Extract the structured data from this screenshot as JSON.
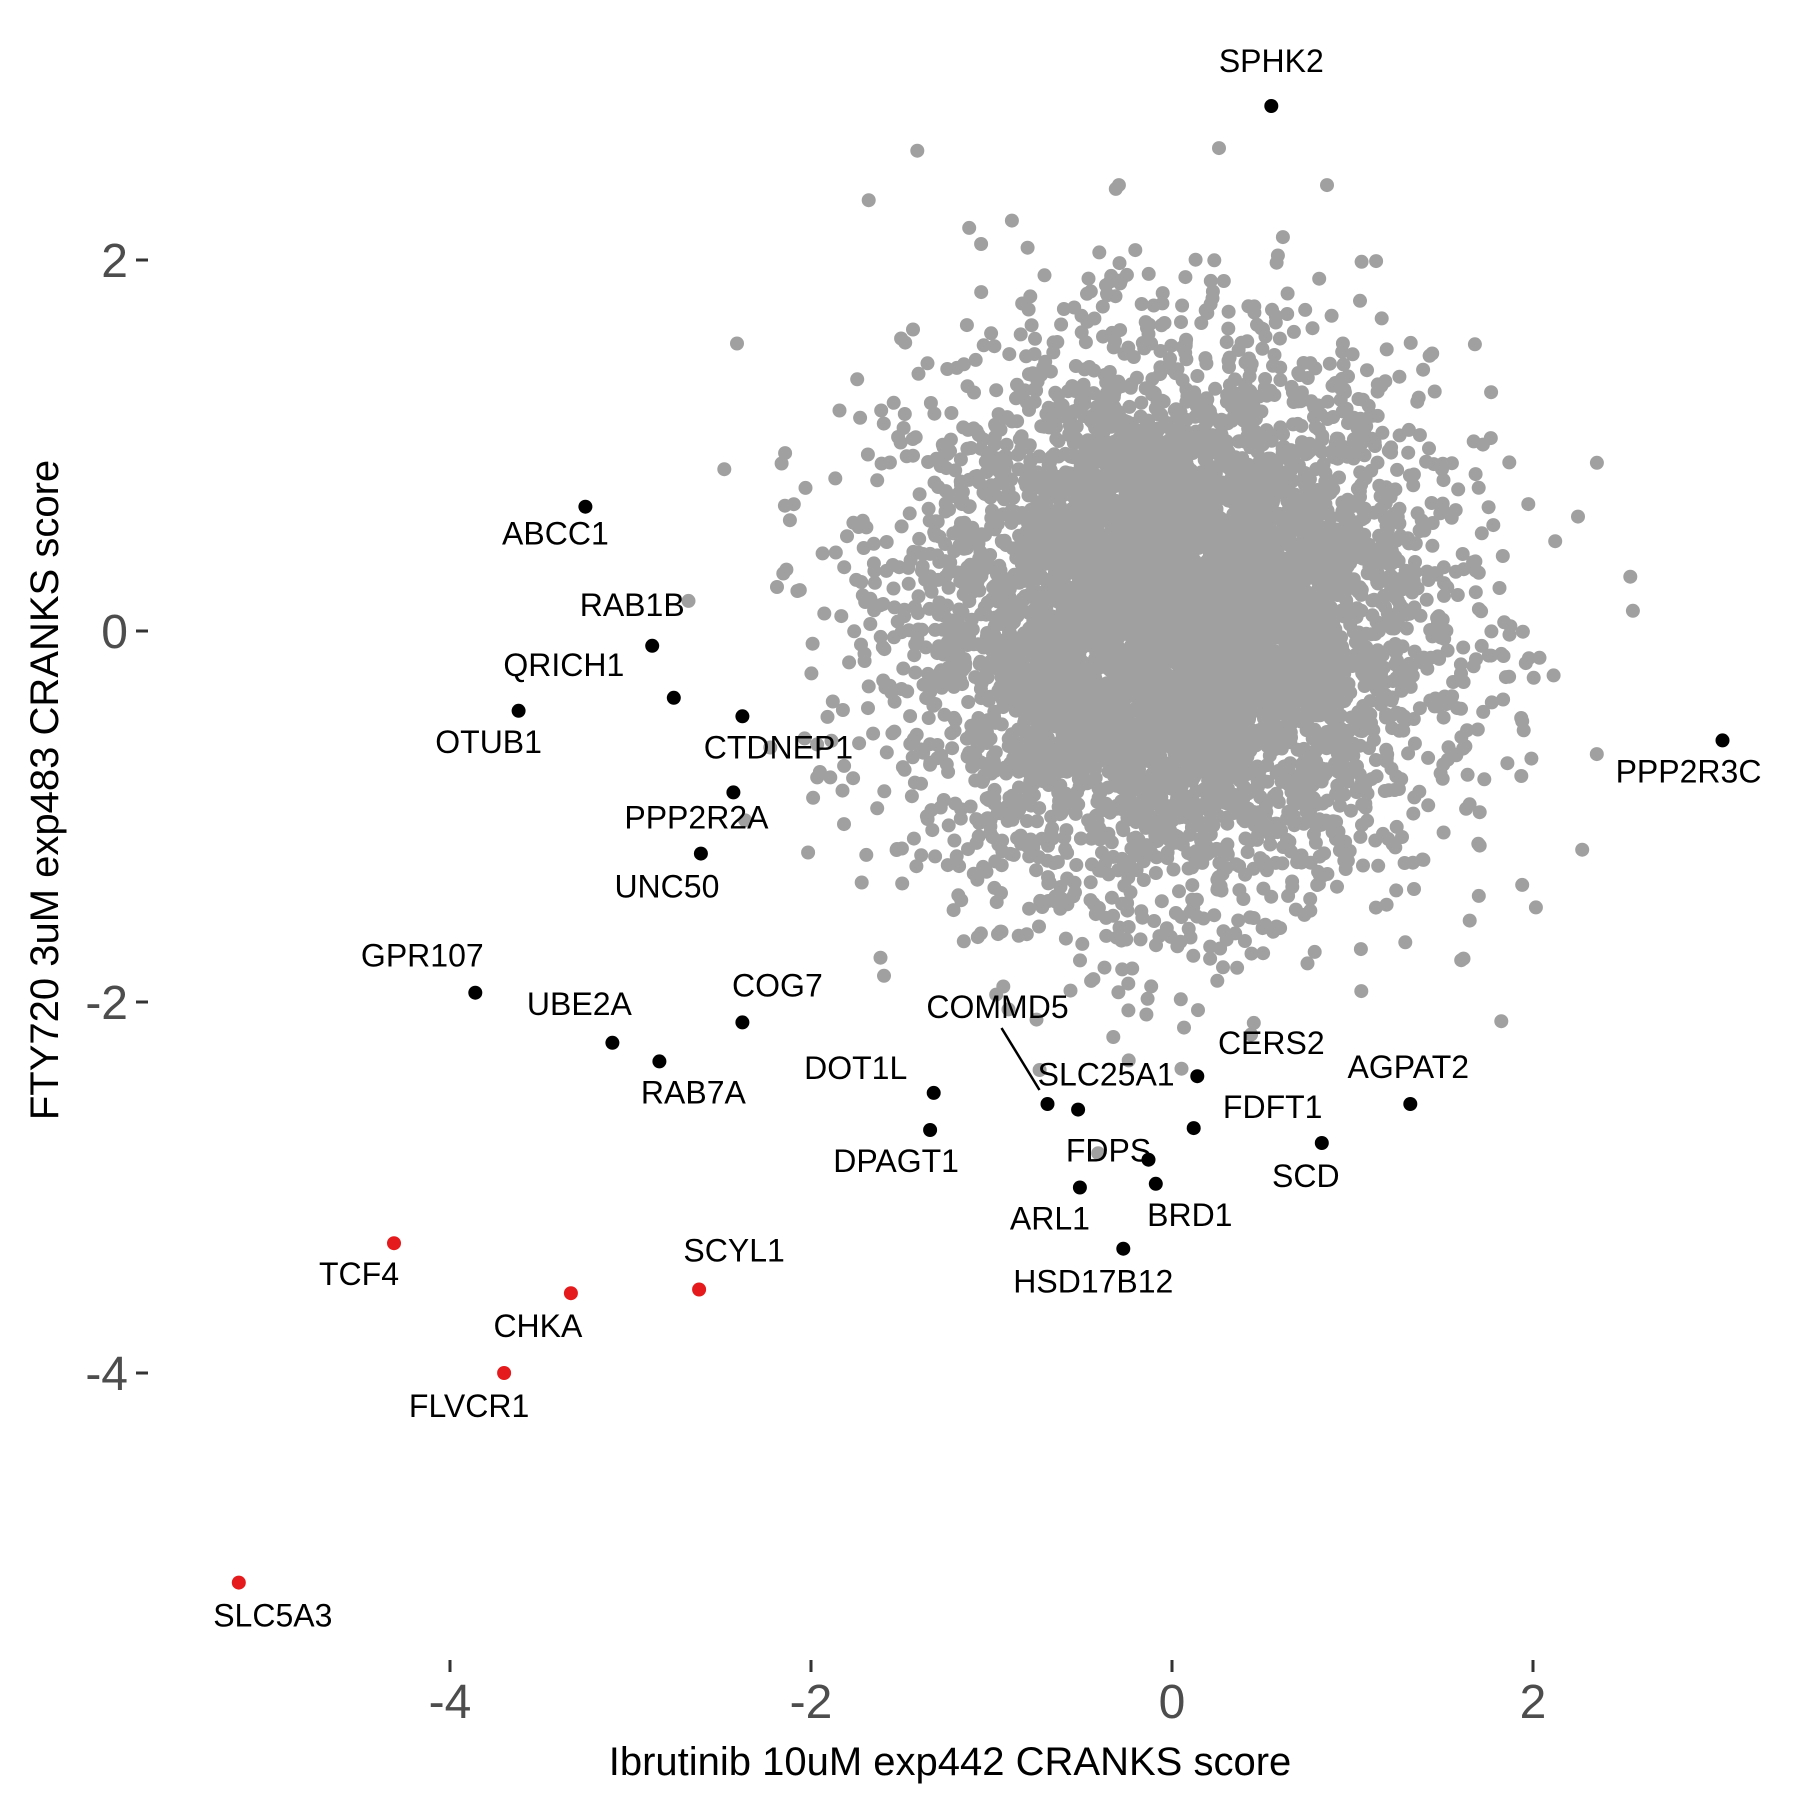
{
  "colors": {
    "background": "#FFFFFF",
    "background_points": "#A0A0A0",
    "highlight": "#000000",
    "top_hits": "#E41A1C",
    "axis_text": "#4D4D4D"
  },
  "chart_data": {
    "type": "scatter",
    "xlabel": "Ibrutinib 10uM exp442 CRANKS score",
    "ylabel": "FTY720 3uM exp483 CRANKS score",
    "xlim": [
      -5.4,
      3.3
    ],
    "ylim": [
      -5.7,
      2.9
    ],
    "x_ticks": [
      -4,
      -2,
      0,
      2
    ],
    "y_ticks": [
      -4,
      -2,
      0,
      2
    ],
    "x_tick_labels": [
      "-4",
      "-2",
      "0",
      "2"
    ],
    "y_tick_labels": [
      "-4",
      "-2",
      "0",
      "2"
    ],
    "grid": false,
    "background_series": {
      "description_count": "approx 18000 genes",
      "center": [
        0.0,
        0.0
      ],
      "spread": 0.75,
      "color": "#A0A0A0"
    },
    "labeled_points": [
      {
        "label": "SPHK2",
        "x": 0.55,
        "y": 2.83,
        "color": "black"
      },
      {
        "label": "ABCC1",
        "x": -3.25,
        "y": 0.67,
        "color": "black"
      },
      {
        "label": "RAB1B",
        "x": -2.88,
        "y": -0.08,
        "color": "black"
      },
      {
        "label": "QRICH1",
        "x": -2.76,
        "y": -0.36,
        "color": "black"
      },
      {
        "label": "OTUB1",
        "x": -3.62,
        "y": -0.43,
        "color": "black"
      },
      {
        "label": "CTDNEP1",
        "x": -2.38,
        "y": -0.46,
        "color": "black"
      },
      {
        "label": "PPP2R2A",
        "x": -2.43,
        "y": -0.87,
        "color": "black"
      },
      {
        "label": "UNC50",
        "x": -2.61,
        "y": -1.2,
        "color": "black"
      },
      {
        "label": "PPP2R3C",
        "x": 3.05,
        "y": -0.59,
        "color": "black"
      },
      {
        "label": "GPR107",
        "x": -3.86,
        "y": -1.95,
        "color": "black"
      },
      {
        "label": "UBE2A",
        "x": -3.1,
        "y": -2.22,
        "color": "black"
      },
      {
        "label": "RAB7A",
        "x": -2.84,
        "y": -2.32,
        "color": "black"
      },
      {
        "label": "COG7",
        "x": -2.38,
        "y": -2.11,
        "color": "black"
      },
      {
        "label": "DOT1L",
        "x": -1.32,
        "y": -2.49,
        "color": "black"
      },
      {
        "label": "DPAGT1",
        "x": -1.34,
        "y": -2.69,
        "color": "black"
      },
      {
        "label": "COMMD5",
        "x": -0.69,
        "y": -2.55,
        "color": "black"
      },
      {
        "label": "SLC25A1",
        "x": -0.52,
        "y": -2.58,
        "color": "black"
      },
      {
        "label": "CERS2",
        "x": 0.14,
        "y": -2.4,
        "color": "black"
      },
      {
        "label": "AGPAT2",
        "x": 1.32,
        "y": -2.55,
        "color": "black"
      },
      {
        "label": "FDFT1",
        "x": 0.12,
        "y": -2.68,
        "color": "black"
      },
      {
        "label": "SCD",
        "x": 0.83,
        "y": -2.76,
        "color": "black"
      },
      {
        "label": "FDPS",
        "x": -0.13,
        "y": -2.85,
        "color": "black"
      },
      {
        "label": "BRD1",
        "x": -0.09,
        "y": -2.98,
        "color": "black"
      },
      {
        "label": "ARL1",
        "x": -0.51,
        "y": -3.0,
        "color": "black"
      },
      {
        "label": "HSD17B12",
        "x": -0.27,
        "y": -3.33,
        "color": "black"
      },
      {
        "label": "TCF4",
        "x": -4.31,
        "y": -3.3,
        "color": "red"
      },
      {
        "label": "SCYL1",
        "x": -2.62,
        "y": -3.55,
        "color": "red"
      },
      {
        "label": "CHKA",
        "x": -3.33,
        "y": -3.57,
        "color": "red"
      },
      {
        "label": "FLVCR1",
        "x": -3.7,
        "y": -4.0,
        "color": "red"
      },
      {
        "label": "SLC5A3",
        "x": -5.17,
        "y": -5.13,
        "color": "red"
      }
    ]
  }
}
